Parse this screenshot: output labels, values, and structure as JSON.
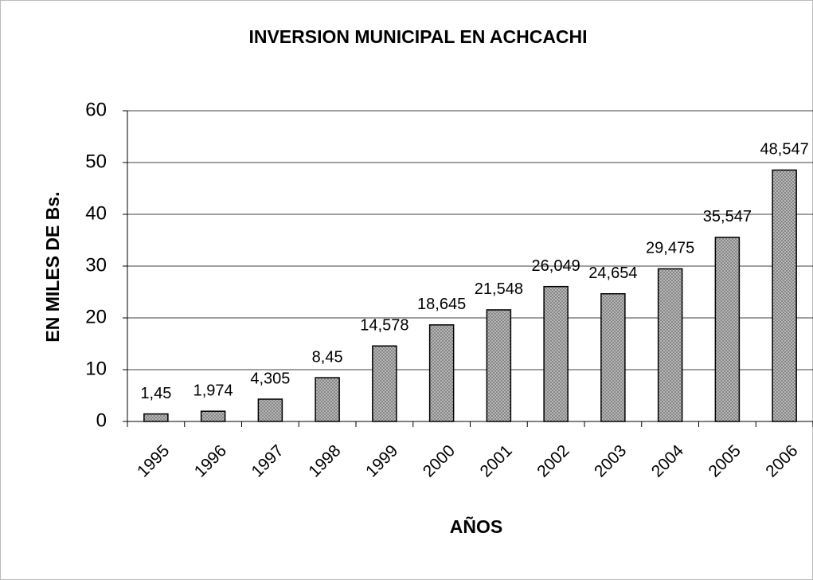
{
  "chart_data": {
    "type": "bar",
    "title": "INVERSION MUNICIPAL EN ACHCACHI",
    "x_label": "AÑOS",
    "y_label": "EN MILES DE Bs.",
    "categories": [
      "1995",
      "1996",
      "1997",
      "1998",
      "1999",
      "2000",
      "2001",
      "2002",
      "2003",
      "2004",
      "2005",
      "2006"
    ],
    "values": [
      1.45,
      1.974,
      4.305,
      8.45,
      14.578,
      18.645,
      21.548,
      26.049,
      24.654,
      29.475,
      35.547,
      48.547
    ],
    "value_labels": [
      "1,45",
      "1,974",
      "4,305",
      "8,45",
      "14,578",
      "18,645",
      "21,548",
      "26,049",
      "24,654",
      "29,475",
      "35,547",
      "48,547"
    ],
    "color": "#c4c4c4",
    "ylim": [
      0,
      60
    ],
    "yticks": [
      0,
      10,
      20,
      30,
      40,
      50,
      60
    ],
    "grid": true
  }
}
